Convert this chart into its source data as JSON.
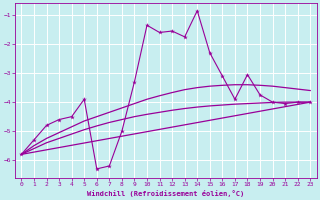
{
  "bg_color": "#c8eef0",
  "grid_color": "#ffffff",
  "line_color": "#990099",
  "xlim": [
    -0.5,
    23.5
  ],
  "ylim": [
    -6.6,
    -0.6
  ],
  "yticks": [
    -6,
    -5,
    -4,
    -3,
    -2,
    -1
  ],
  "xticks": [
    0,
    1,
    2,
    3,
    4,
    5,
    6,
    7,
    8,
    9,
    10,
    11,
    12,
    13,
    14,
    15,
    16,
    17,
    18,
    19,
    20,
    21,
    22,
    23
  ],
  "xlabel": "Windchill (Refroidissement éolien,°C)",
  "main_x": [
    0,
    1,
    2,
    3,
    4,
    5,
    6,
    7,
    8,
    9,
    10,
    11,
    12,
    13,
    14,
    15,
    16,
    17,
    18,
    19,
    20,
    21,
    22,
    23
  ],
  "main_y": [
    -5.8,
    -5.3,
    -4.8,
    -4.6,
    -4.5,
    -3.9,
    -6.3,
    -6.2,
    -5.0,
    -3.3,
    -1.35,
    -1.6,
    -1.55,
    -1.75,
    -0.85,
    -2.3,
    -3.1,
    -3.9,
    -3.05,
    -3.75,
    -4.0,
    -4.05,
    -4.0,
    -4.0
  ],
  "line1_x": [
    0,
    23
  ],
  "line1_y": [
    -5.8,
    -4.0
  ],
  "smooth1_x": [
    0,
    1,
    2,
    3,
    4,
    5,
    6,
    7,
    8,
    9,
    10,
    11,
    12,
    13,
    14,
    15,
    16,
    17,
    18,
    19,
    20,
    21,
    22,
    23
  ],
  "smooth1_y": [
    -5.8,
    -5.5,
    -5.25,
    -5.05,
    -4.85,
    -4.65,
    -4.5,
    -4.35,
    -4.2,
    -4.05,
    -3.9,
    -3.78,
    -3.67,
    -3.57,
    -3.5,
    -3.45,
    -3.42,
    -3.4,
    -3.4,
    -3.42,
    -3.45,
    -3.5,
    -3.55,
    -3.6
  ],
  "smooth2_x": [
    0,
    1,
    2,
    3,
    4,
    5,
    6,
    7,
    8,
    9,
    10,
    11,
    12,
    13,
    14,
    15,
    16,
    17,
    18,
    19,
    20,
    21,
    22,
    23
  ],
  "smooth2_y": [
    -5.8,
    -5.6,
    -5.4,
    -5.25,
    -5.1,
    -4.95,
    -4.82,
    -4.7,
    -4.6,
    -4.5,
    -4.42,
    -4.35,
    -4.28,
    -4.22,
    -4.17,
    -4.13,
    -4.1,
    -4.07,
    -4.05,
    -4.03,
    -4.01,
    -4.0,
    -4.0,
    -4.0
  ]
}
